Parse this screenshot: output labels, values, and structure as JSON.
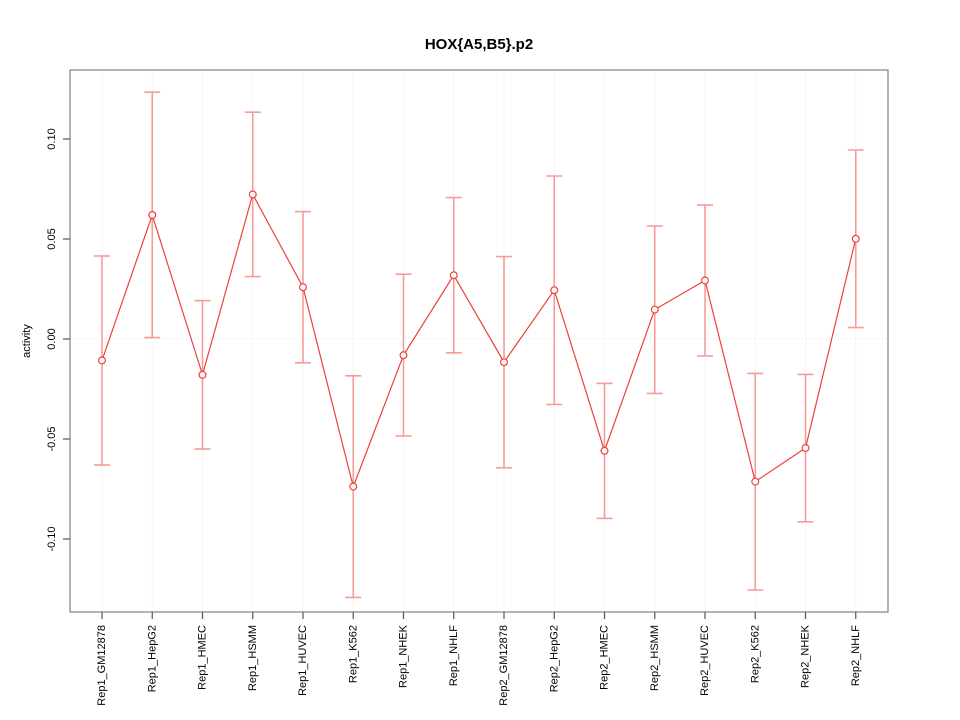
{
  "chart_data": {
    "type": "line",
    "title": "HOX{A5,B5}.p2",
    "xlabel": "",
    "ylabel": "activity",
    "categories": [
      "Rep1_GM12878",
      "Rep1_HepG2",
      "Rep1_HMEC",
      "Rep1_HSMM",
      "Rep1_HUVEC",
      "Rep1_K562",
      "Rep1_NHEK",
      "Rep1_NHLF",
      "Rep2_GM12878",
      "Rep2_HepG2",
      "Rep2_HMEC",
      "Rep2_HSMM",
      "Rep2_HUVEC",
      "Rep2_K562",
      "Rep2_NHEK",
      "Rep2_NHLF"
    ],
    "series": [
      {
        "name": "activity",
        "values": [
          -0.0107,
          0.062,
          -0.0179,
          0.0723,
          0.0259,
          -0.0738,
          -0.0081,
          0.0319,
          -0.0116,
          0.0244,
          -0.0559,
          0.0147,
          0.0293,
          -0.0713,
          -0.0545,
          0.0501
        ],
        "upper": [
          0.0415,
          0.1234,
          0.0192,
          0.1134,
          0.0637,
          -0.0184,
          0.0324,
          0.0707,
          0.0412,
          0.0815,
          -0.0222,
          0.0565,
          0.067,
          -0.0172,
          -0.0177,
          0.0945
        ],
        "lower": [
          -0.063,
          0.0007,
          -0.055,
          0.0312,
          -0.0119,
          -0.1292,
          -0.0485,
          -0.0069,
          -0.0644,
          -0.0327,
          -0.0897,
          -0.0272,
          -0.0085,
          -0.1255,
          -0.0914,
          0.0057
        ]
      }
    ],
    "ytick_labels": [
      "0.10",
      "0.05",
      "0.00",
      "-0.05",
      "-0.10"
    ],
    "yticks": [
      0.1,
      0.05,
      0.0,
      -0.05,
      -0.1
    ],
    "ylim": [
      -0.1365,
      0.1345
    ],
    "grid": {
      "vertical_dotted_per_category": true,
      "dotted_zero_line": true,
      "legend": "none"
    },
    "colors": {
      "series_line": "#ee4038",
      "point_stroke": "#ee4038",
      "error_bar": "#f59b9b",
      "grid_line": "#dedede",
      "axis_box": "#838383",
      "tick": "#555555",
      "label_text": "#000000"
    }
  }
}
